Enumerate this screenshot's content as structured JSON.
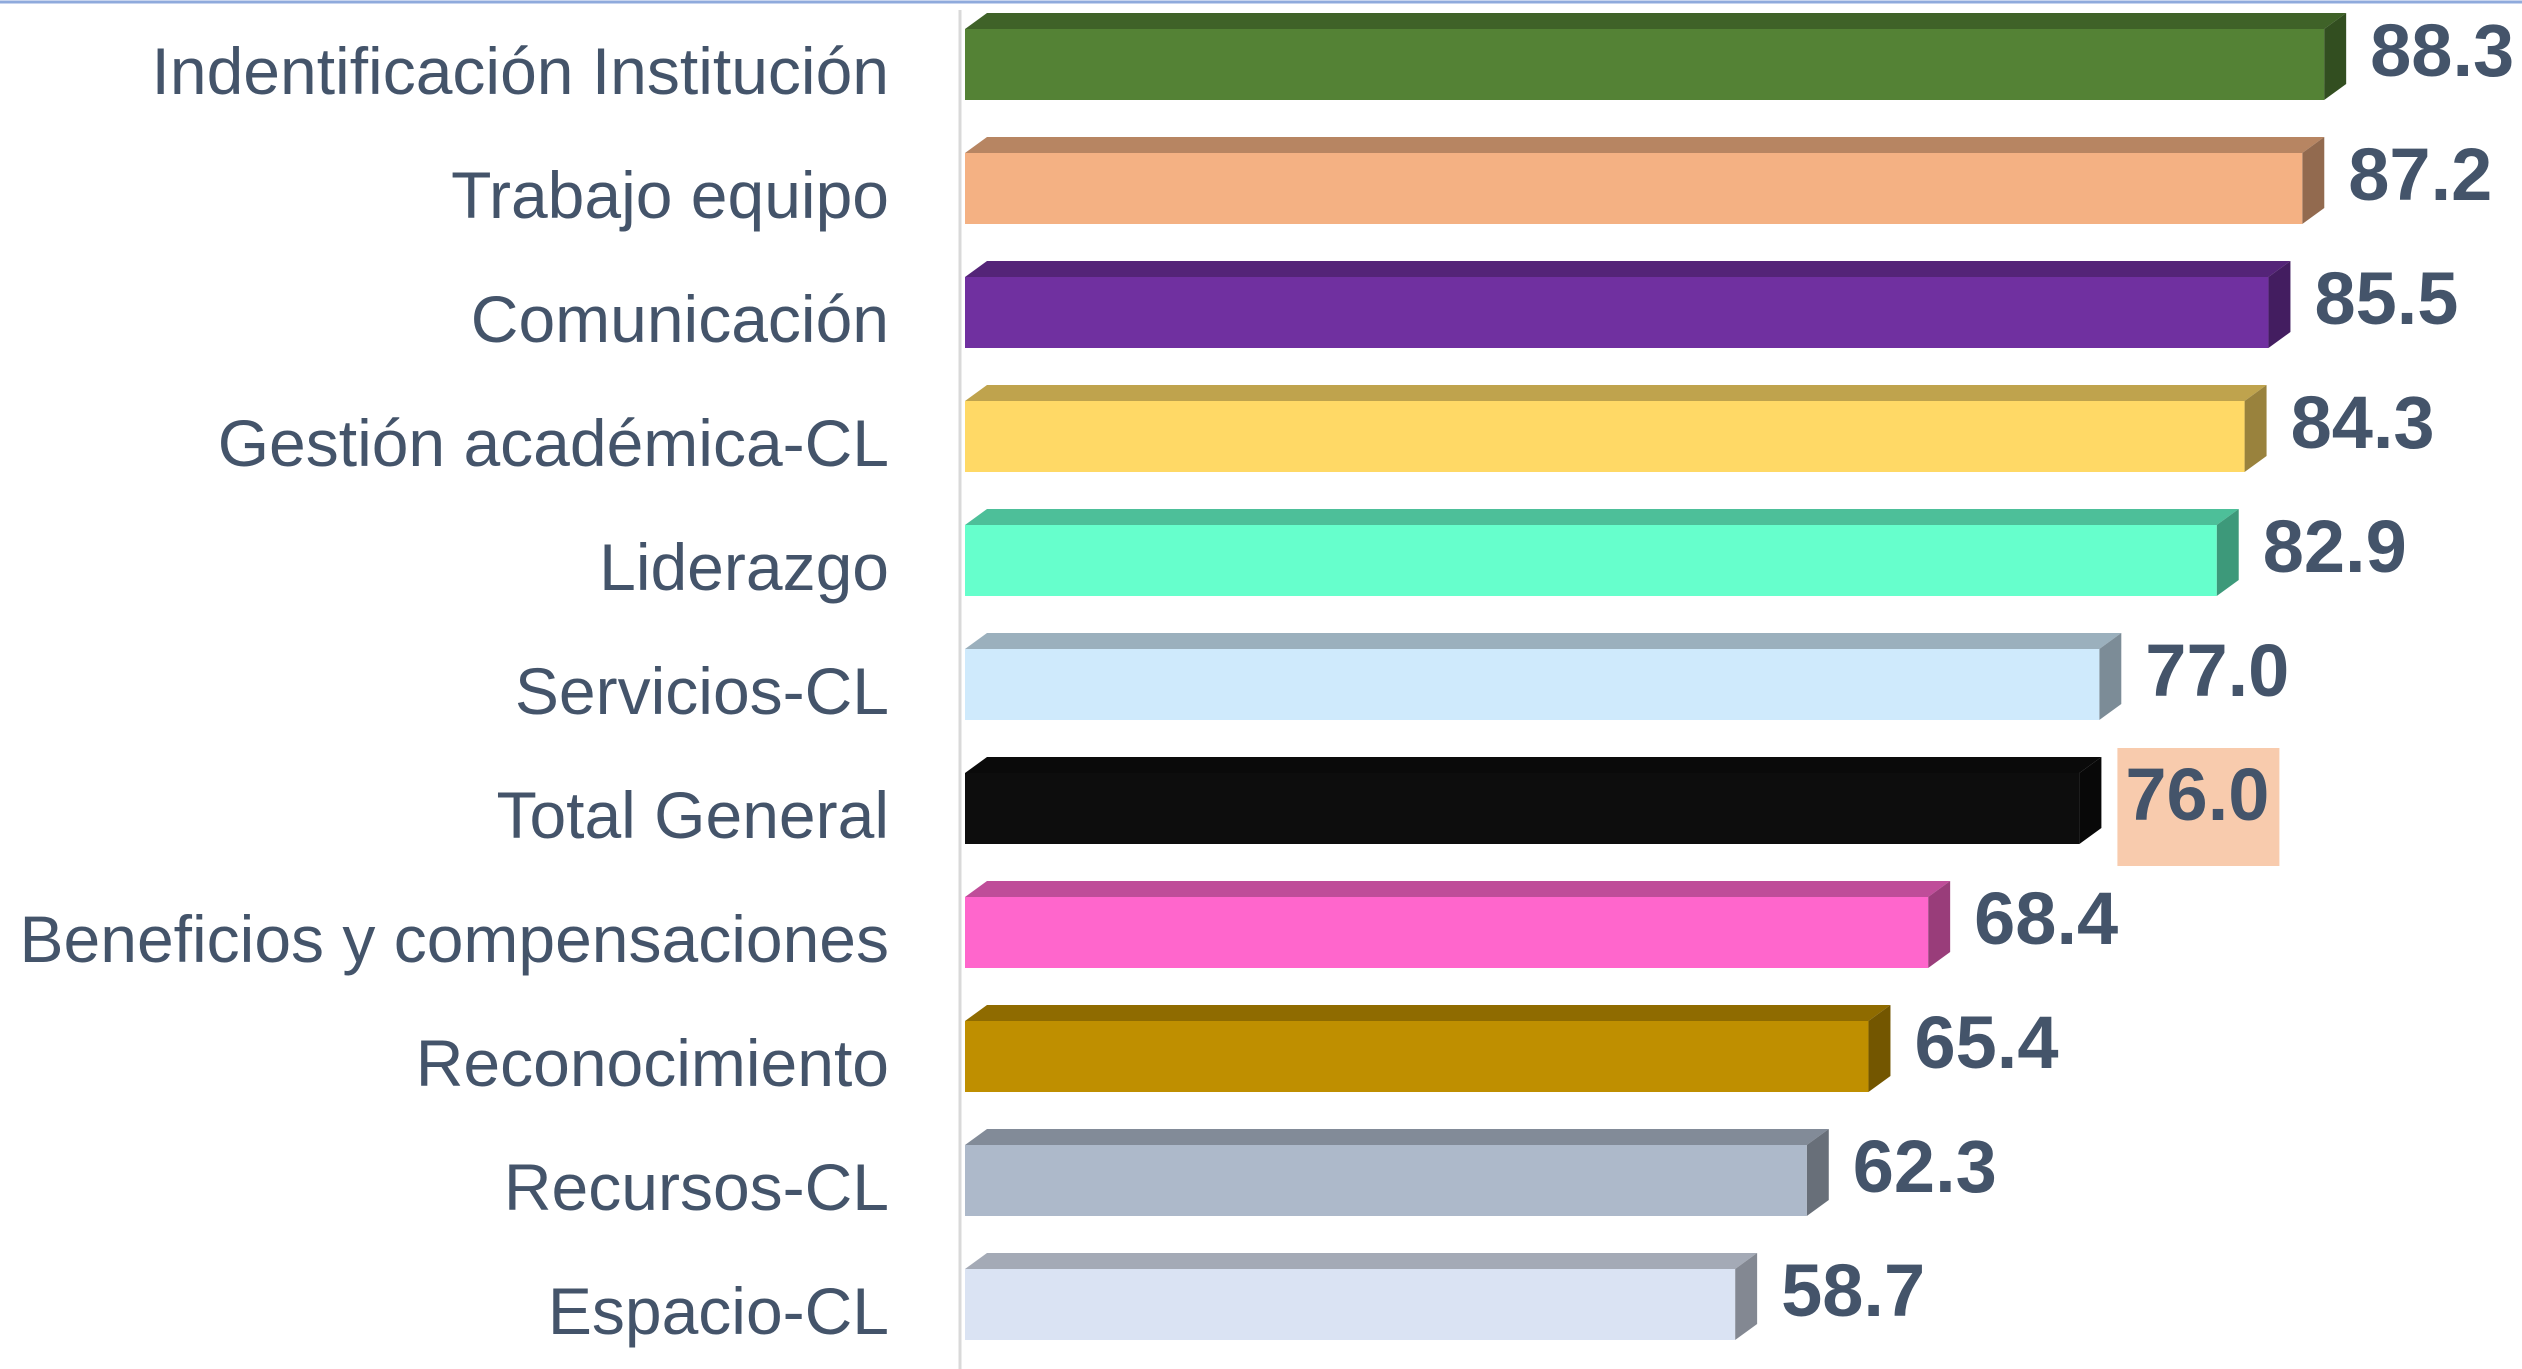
{
  "chart_data": {
    "type": "bar3d_horizontal",
    "categories": [
      "Indentificación Institución",
      "Trabajo equipo",
      "Comunicación",
      "Gestión académica-CL",
      "Liderazgo",
      "Servicios-CL",
      "Total General",
      "Beneficios y compensaciones",
      "Reconocimiento",
      "Recursos-CL",
      "Espacio-CL"
    ],
    "values": [
      88.3,
      87.2,
      85.5,
      84.3,
      82.9,
      77.0,
      76.0,
      68.4,
      65.4,
      62.3,
      58.7
    ],
    "value_labels": [
      "88.3",
      "87.2",
      "85.5",
      "84.3",
      "82.9",
      "77.0",
      "76.0",
      "68.4",
      "65.4",
      "62.3",
      "58.7"
    ],
    "colors": [
      "#548235",
      "#f4b183",
      "#7030a0",
      "#ffd966",
      "#66ffcc",
      "#cfeafc",
      "#0d0d0d",
      "#ff66cc",
      "#bf8f00",
      "#adb9ca",
      "#dae3f3"
    ],
    "highlight": {
      "index": 6,
      "color": "#f8cbad"
    },
    "xlim": [
      20,
      100
    ]
  }
}
